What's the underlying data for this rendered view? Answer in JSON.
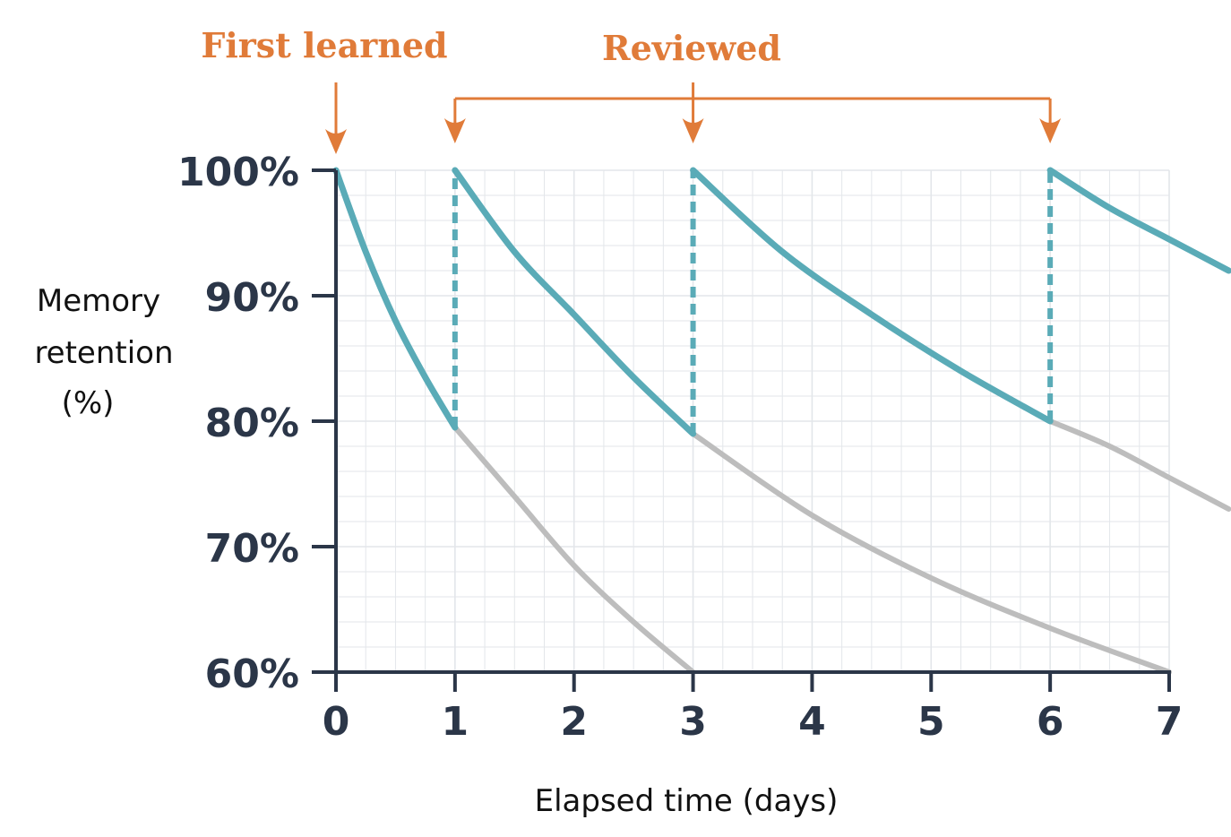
{
  "chart_data": {
    "type": "line",
    "title": "",
    "xlabel": "Elapsed time (days)",
    "ylabel": "Memory retention (%)",
    "xlim": [
      0,
      7
    ],
    "ylim": [
      60,
      100
    ],
    "x_ticks": [
      "0",
      "1",
      "2",
      "3",
      "4",
      "5",
      "6",
      "7"
    ],
    "y_ticks": [
      "60%",
      "70%",
      "80%",
      "90%",
      "100%"
    ],
    "grid": true,
    "annotations": {
      "first_learned": {
        "label": "First learned",
        "day": 0
      },
      "reviewed": {
        "label": "Reviewed",
        "days": [
          1,
          3,
          6
        ]
      }
    },
    "series": [
      {
        "x": [
          0,
          0.25,
          0.5,
          0.75,
          1
        ],
        "y": [
          100,
          93.5,
          88,
          83.5,
          79.5
        ]
      },
      {
        "x": [
          1,
          1.5,
          2,
          2.5,
          3
        ],
        "y": [
          100,
          93.5,
          88.5,
          83.5,
          79
        ]
      },
      {
        "x": [
          3,
          3.75,
          4.5,
          5.25,
          6
        ],
        "y": [
          100,
          93.5,
          88.5,
          84,
          80
        ]
      },
      {
        "x": [
          6,
          6.5,
          7,
          7.5
        ],
        "y": [
          100,
          97,
          94.5,
          92
        ]
      },
      {
        "x": [
          1,
          1.5,
          2,
          2.5,
          3
        ],
        "y": [
          79.5,
          74,
          68.5,
          64,
          60
        ]
      },
      {
        "x": [
          3,
          4,
          5,
          6,
          7
        ],
        "y": [
          79,
          72.5,
          67.5,
          63.5,
          60
        ]
      },
      {
        "x": [
          6,
          6.5,
          7,
          7.5
        ],
        "y": [
          80,
          78,
          75.5,
          73
        ]
      }
    ],
    "review_drops": [
      {
        "x": 1,
        "from": 79.5,
        "to": 100
      },
      {
        "x": 3,
        "from": 79,
        "to": 100
      },
      {
        "x": 6,
        "from": 80,
        "to": 100
      }
    ],
    "colors": {
      "retained": "#5aabb7",
      "forgotten": "#bdbdbd",
      "accent": "#e07b39",
      "axis": "#2b3648",
      "grid": "#e3e6ea"
    }
  }
}
